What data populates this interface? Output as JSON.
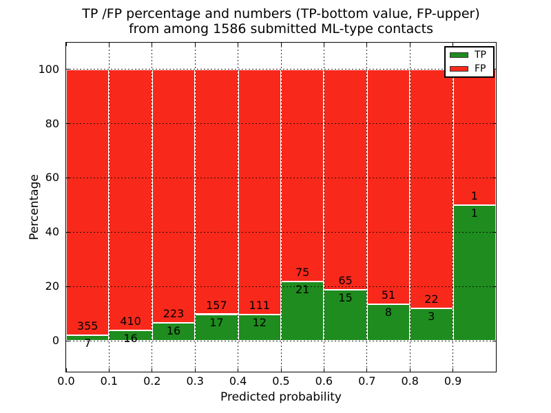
{
  "title": {
    "line1": "TP /FP percentage and numbers (TP-bottom value, FP-upper)",
    "line2": "from among 1586 submitted ML-type contacts"
  },
  "chart_data": {
    "type": "bar",
    "stacked": true,
    "unit": "percent-of-bin",
    "title_line1": "TP /FP percentage and numbers (TP-bottom value, FP-upper)",
    "title_line2": "from among 1586 submitted ML-type contacts",
    "xlabel": "Predicted probability",
    "ylabel": "Percentage",
    "total_contacts": 1586,
    "bin_edges": [
      0.0,
      0.1,
      0.2,
      0.3,
      0.4,
      0.5,
      0.6,
      0.7,
      0.8,
      0.9,
      1.0
    ],
    "series": [
      {
        "name": "TP",
        "counts": [
          7,
          16,
          16,
          17,
          12,
          21,
          15,
          8,
          3,
          1
        ]
      },
      {
        "name": "FP",
        "counts": [
          355,
          410,
          223,
          157,
          111,
          75,
          65,
          51,
          22,
          1
        ]
      }
    ],
    "tp_percent": [
      1.93,
      3.76,
      6.69,
      9.77,
      9.76,
      21.88,
      18.75,
      13.56,
      12.0,
      50.0
    ],
    "bar_total_percent": 100,
    "xticks": [
      "0.0",
      "0.1",
      "0.2",
      "0.3",
      "0.4",
      "0.5",
      "0.6",
      "0.7",
      "0.8",
      "0.9"
    ],
    "yticks": [
      "0",
      "20",
      "40",
      "60",
      "80",
      "100"
    ],
    "ytick_values": [
      0,
      20,
      40,
      60,
      80,
      100
    ],
    "xtick_values": [
      0.0,
      0.1,
      0.2,
      0.3,
      0.4,
      0.5,
      0.6,
      0.7,
      0.8,
      0.9
    ],
    "xlim": [
      0.0,
      1.0
    ],
    "ylim": [
      -11.4,
      109.8
    ],
    "grid": {
      "linestyle": "dotted",
      "color": "#000000",
      "above_bars": true,
      "axes": "both"
    },
    "colors": {
      "tp": "#1e8c1e",
      "fp": "#f8291b"
    },
    "legend": {
      "position": "upper right",
      "entries": [
        {
          "label": "TP",
          "color_key": "tp"
        },
        {
          "label": "FP",
          "color_key": "fp"
        }
      ]
    }
  }
}
